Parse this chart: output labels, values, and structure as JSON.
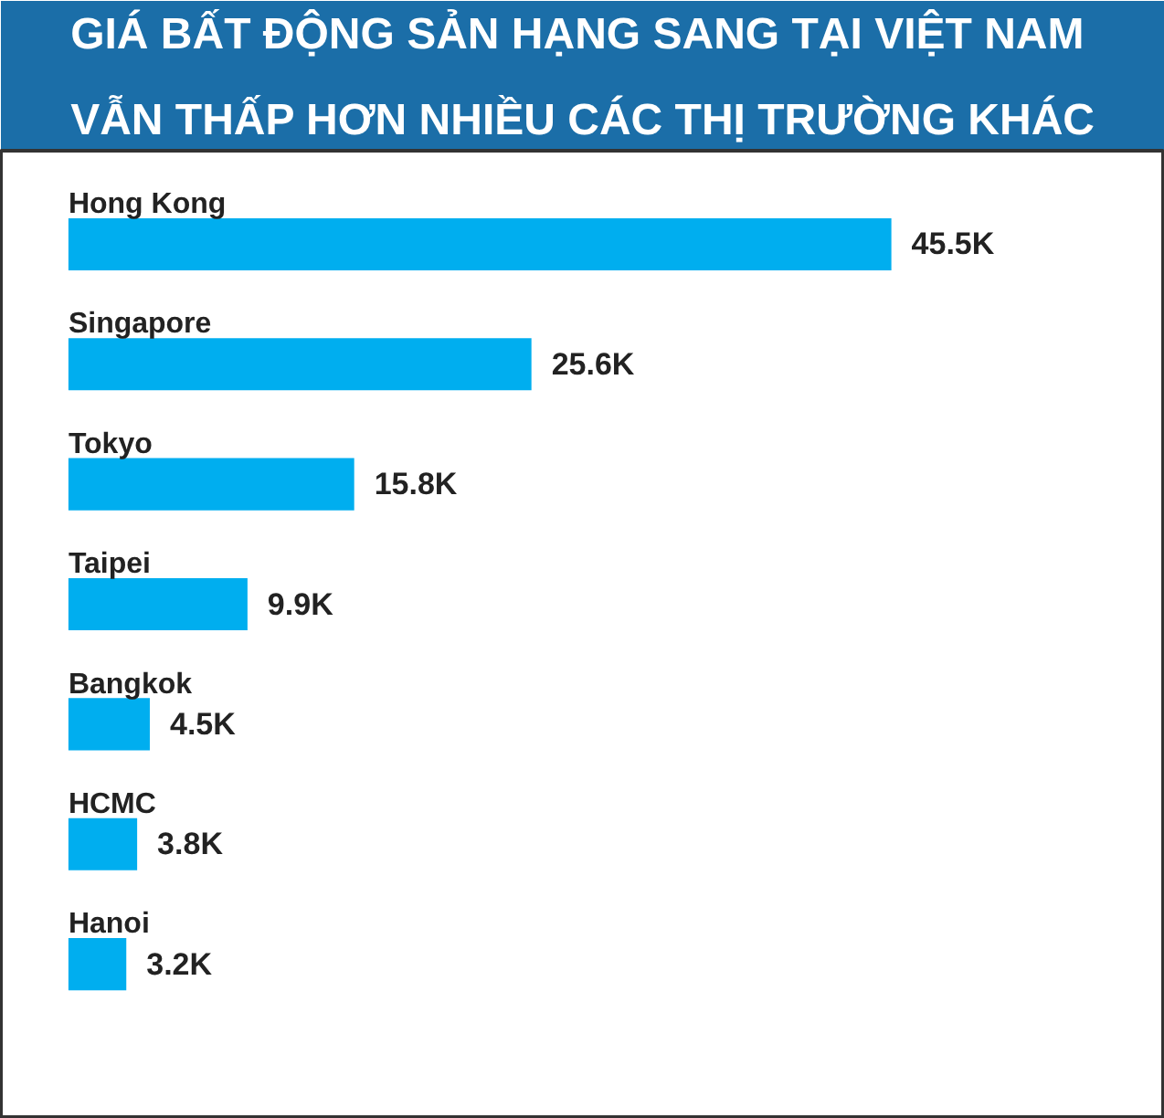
{
  "chart_data": {
    "type": "bar",
    "orientation": "horizontal",
    "title": "GIÁ BẤT ĐỘNG SẢN HẠNG SANG TẠI VIỆT NAM\nVẪN THẤP HƠN NHIỀU CÁC THỊ TRƯỜNG KHÁC",
    "categories": [
      "Hong Kong",
      "Singapore",
      "Tokyo",
      "Taipei",
      "Bangkok",
      "HCMC",
      "Hanoi"
    ],
    "values": [
      45500,
      25600,
      15800,
      9900,
      4500,
      3800,
      3200
    ],
    "value_labels": [
      "45.5K",
      "25.6K",
      "15.8K",
      "9.9K",
      "4.5K",
      "3.8K",
      "3.2K"
    ],
    "color": "#00aeef",
    "tick_labels": "y"
  }
}
